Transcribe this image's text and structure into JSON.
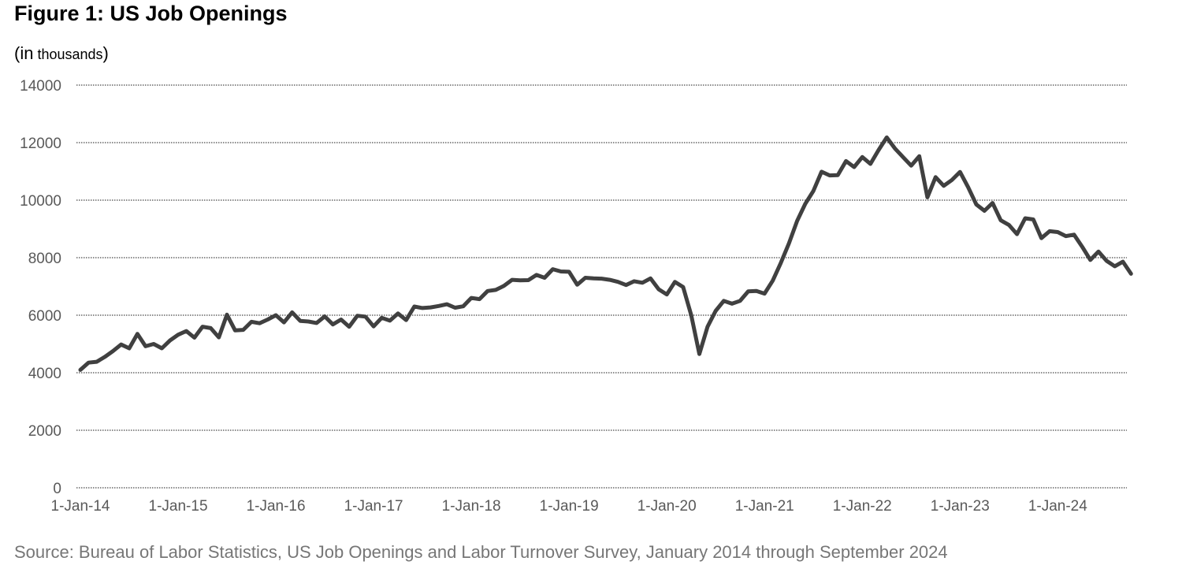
{
  "chart_data": {
    "type": "line",
    "title": "Figure 1: US Job Openings",
    "units_label": {
      "open": "(",
      "main": "in",
      "small": " thousands",
      "close": ")"
    },
    "source": "Source: Bureau of Labor Statistics, US Job Openings and Labor Turnover Survey, January 2014  through September 2024",
    "grid": true,
    "ylim": [
      0,
      14000
    ],
    "yticks": [
      0,
      2000,
      4000,
      6000,
      8000,
      10000,
      12000,
      14000
    ],
    "xlim": [
      "2014-01",
      "2024-09"
    ],
    "xticks": [
      {
        "date": "2014-01",
        "label": "1-Jan-14"
      },
      {
        "date": "2015-01",
        "label": "1-Jan-15"
      },
      {
        "date": "2016-01",
        "label": "1-Jan-16"
      },
      {
        "date": "2017-01",
        "label": "1-Jan-17"
      },
      {
        "date": "2018-01",
        "label": "1-Jan-18"
      },
      {
        "date": "2019-01",
        "label": "1-Jan-19"
      },
      {
        "date": "2020-01",
        "label": "1-Jan-20"
      },
      {
        "date": "2021-01",
        "label": "1-Jan-21"
      },
      {
        "date": "2022-01",
        "label": "1-Jan-22"
      },
      {
        "date": "2023-01",
        "label": "1-Jan-23"
      },
      {
        "date": "2024-01",
        "label": "1-Jan-24"
      }
    ],
    "series": [
      {
        "color": "#404040",
        "start": "2014-01",
        "frequency": "monthly",
        "values": [
          4100,
          4350,
          4380,
          4550,
          4750,
          4980,
          4850,
          5350,
          4920,
          5000,
          4850,
          5120,
          5320,
          5450,
          5220,
          5600,
          5550,
          5230,
          6020,
          5470,
          5490,
          5770,
          5720,
          5850,
          6000,
          5750,
          6100,
          5800,
          5780,
          5730,
          5960,
          5680,
          5850,
          5600,
          5980,
          5950,
          5610,
          5910,
          5810,
          6060,
          5830,
          6300,
          6250,
          6270,
          6320,
          6380,
          6260,
          6310,
          6600,
          6560,
          6840,
          6880,
          7020,
          7230,
          7210,
          7220,
          7400,
          7300,
          7600,
          7520,
          7510,
          7060,
          7300,
          7280,
          7270,
          7230,
          7160,
          7050,
          7180,
          7130,
          7280,
          6900,
          6720,
          7160,
          6980,
          6000,
          4650,
          5600,
          6150,
          6500,
          6400,
          6500,
          6830,
          6840,
          6750,
          7200,
          7820,
          8500,
          9280,
          9870,
          10320,
          10990,
          10860,
          10870,
          11360,
          11150,
          11500,
          11260,
          11740,
          12180,
          11800,
          11500,
          11200,
          11530,
          10100,
          10800,
          10500,
          10700,
          10980,
          10450,
          9850,
          9630,
          9900,
          9300,
          9140,
          8820,
          9370,
          9330,
          8680,
          8920,
          8890,
          8750,
          8800,
          8380,
          7920,
          8210,
          7890,
          7700,
          7860,
          7440
        ]
      }
    ]
  }
}
